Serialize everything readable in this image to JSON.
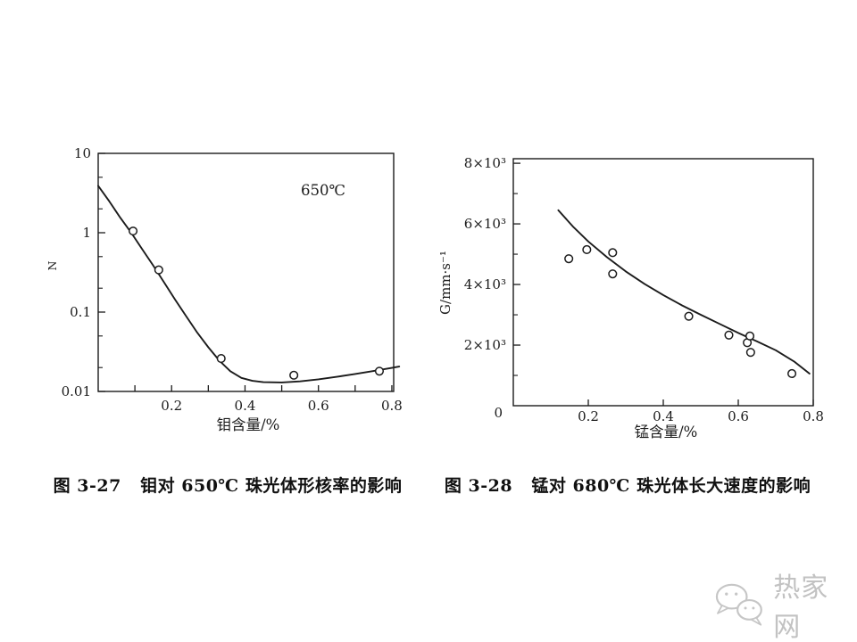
{
  "figures": [
    {
      "caption": "图 3-27   钼对 650℃ 珠光体形核率的影响"
    },
    {
      "caption": "图 3-28   锰对 680℃ 珠光体长大速度的影响"
    }
  ],
  "watermark": {
    "text": "热家网",
    "icon": "wechat-bubbles-icon",
    "color": "#c4c4c4"
  },
  "ink_color": "#1b1b1b",
  "chart_data": [
    {
      "id": "fig-3-27",
      "type": "scatter",
      "title": "图 3-27 钼对650℃珠光体形核率的影响",
      "annotation": "650℃",
      "xlabel": "钼含量/%",
      "ylabel": "N",
      "y_scale": "log",
      "xlim": [
        0,
        0.805
      ],
      "ylim": [
        0.01,
        10
      ],
      "x_ticks": {
        "values": [
          0.1,
          0.2,
          0.3,
          0.4,
          0.5,
          0.6,
          0.7,
          0.8
        ],
        "label_values": [
          0.2,
          0.4,
          0.6,
          0.8
        ],
        "labels": [
          "0.2",
          "0.4",
          "0.6",
          "0.8"
        ]
      },
      "y_ticks": {
        "major": [
          10,
          1,
          0.1,
          0.01
        ],
        "labels": [
          "10",
          "1",
          "0.1",
          "0.01"
        ],
        "minor": [
          5,
          2,
          0.5,
          0.2,
          0.05,
          0.02
        ]
      },
      "points": [
        [
          0.095,
          1.05
        ],
        [
          0.165,
          0.34
        ],
        [
          0.335,
          0.026
        ],
        [
          0.533,
          0.016
        ],
        [
          0.766,
          0.018
        ]
      ],
      "curve": [
        [
          0,
          3.9
        ],
        [
          0.03,
          2.5
        ],
        [
          0.06,
          1.55
        ],
        [
          0.09,
          1.0
        ],
        [
          0.12,
          0.62
        ],
        [
          0.15,
          0.385
        ],
        [
          0.18,
          0.235
        ],
        [
          0.21,
          0.143
        ],
        [
          0.24,
          0.088
        ],
        [
          0.27,
          0.055
        ],
        [
          0.3,
          0.036
        ],
        [
          0.33,
          0.0245
        ],
        [
          0.36,
          0.018
        ],
        [
          0.39,
          0.0148
        ],
        [
          0.42,
          0.0136
        ],
        [
          0.45,
          0.0131
        ],
        [
          0.5,
          0.013
        ],
        [
          0.55,
          0.0134
        ],
        [
          0.6,
          0.0142
        ],
        [
          0.65,
          0.0153
        ],
        [
          0.7,
          0.0166
        ],
        [
          0.75,
          0.0181
        ],
        [
          0.8,
          0.0198
        ],
        [
          0.82,
          0.0206
        ]
      ]
    },
    {
      "id": "fig-3-28",
      "type": "scatter",
      "title": "图 3-28 锰对680℃珠光体长大速度的影响",
      "annotation": "",
      "xlabel": "锰含量/%",
      "ylabel": "G/mm·s⁻¹",
      "y_scale": "linear",
      "xlim": [
        0,
        0.8
      ],
      "ylim": [
        0,
        8150
      ],
      "origin_label": "0",
      "x_ticks": {
        "values": [
          0.2,
          0.4,
          0.6,
          0.8
        ],
        "label_values": [
          0.2,
          0.4,
          0.6,
          0.8
        ],
        "labels": [
          "0.2",
          "0.4",
          "0.6",
          "0.8"
        ]
      },
      "y_ticks": {
        "major": [
          2000,
          4000,
          6000,
          8000
        ],
        "labels": [
          "2×10³",
          "4×10³",
          "6×10³",
          "8×10³"
        ],
        "minor": [
          1000,
          3000,
          5000,
          7000
        ]
      },
      "points": [
        [
          0.148,
          4850
        ],
        [
          0.196,
          5150
        ],
        [
          0.265,
          5050
        ],
        [
          0.265,
          4350
        ],
        [
          0.468,
          2950
        ],
        [
          0.575,
          2330
        ],
        [
          0.624,
          2080
        ],
        [
          0.631,
          2300
        ],
        [
          0.633,
          1760
        ],
        [
          0.743,
          1060
        ]
      ],
      "curve": [
        [
          0.12,
          6450
        ],
        [
          0.16,
          5900
        ],
        [
          0.2,
          5420
        ],
        [
          0.25,
          4900
        ],
        [
          0.3,
          4430
        ],
        [
          0.35,
          4020
        ],
        [
          0.4,
          3650
        ],
        [
          0.45,
          3310
        ],
        [
          0.5,
          3000
        ],
        [
          0.55,
          2700
        ],
        [
          0.6,
          2400
        ],
        [
          0.65,
          2120
        ],
        [
          0.7,
          1830
        ],
        [
          0.75,
          1450
        ],
        [
          0.79,
          1060
        ]
      ]
    }
  ]
}
